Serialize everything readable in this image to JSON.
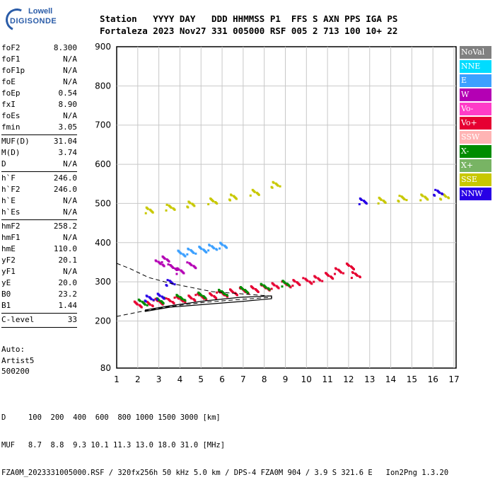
{
  "logo": {
    "line1": "Lowell",
    "line2": "DIGISONDE"
  },
  "header": {
    "line1": "Station   YYYY DAY   DDD HHMMSS P1  FFS S AXN PPS IGA PS",
    "line2": "Fortaleza 2023 Nov27 331 005000 RSF 005 2 713 100 10+ 22"
  },
  "params": [
    {
      "name": "foF2",
      "value": "8.300"
    },
    {
      "name": "foF1",
      "value": "N/A"
    },
    {
      "name": "foF1p",
      "value": "N/A"
    },
    {
      "name": "foE",
      "value": "N/A"
    },
    {
      "name": "foEp",
      "value": "0.54"
    },
    {
      "name": "fxI",
      "value": "8.90"
    },
    {
      "name": "foEs",
      "value": "N/A"
    },
    {
      "name": "fmin",
      "value": "3.05"
    },
    {
      "sep": true
    },
    {
      "name": "MUF(D)",
      "value": "31.04"
    },
    {
      "name": "M(D)",
      "value": "3.74"
    },
    {
      "name": "D",
      "value": "N/A"
    },
    {
      "sep": true
    },
    {
      "name": "h`F",
      "value": "246.0"
    },
    {
      "name": "h`F2",
      "value": "246.0"
    },
    {
      "name": "h`E",
      "value": "N/A"
    },
    {
      "name": "h`Es",
      "value": "N/A"
    },
    {
      "sep": true
    },
    {
      "name": "hmF2",
      "value": "258.2"
    },
    {
      "name": "hmF1",
      "value": "N/A"
    },
    {
      "name": "hmE",
      "value": "110.0"
    },
    {
      "name": "yF2",
      "value": "20.1"
    },
    {
      "name": "yF1",
      "value": "N/A"
    },
    {
      "name": "yE",
      "value": "20.0"
    },
    {
      "name": "B0",
      "value": "23.2"
    },
    {
      "name": "B1",
      "value": "1.44"
    },
    {
      "sep": true
    },
    {
      "name": "C-level",
      "value": "33"
    },
    {
      "sep": true
    }
  ],
  "auto": {
    "line1": "Auto:",
    "line2": "Artist5",
    "line3": "500200"
  },
  "legend": [
    {
      "label": "NoVal",
      "color": "#808080"
    },
    {
      "label": "NNE",
      "color": "#00dcff"
    },
    {
      "label": "E",
      "color": "#3ca0ff"
    },
    {
      "label": "W",
      "color": "#b400b4"
    },
    {
      "label": "Vo-",
      "color": "#ff3cc8"
    },
    {
      "label": "Vo+",
      "color": "#e60032"
    },
    {
      "label": "SSW",
      "color": "#ffb4b4"
    },
    {
      "label": "X-",
      "color": "#008c00"
    },
    {
      "label": "X+",
      "color": "#78b464"
    },
    {
      "label": "SSE",
      "color": "#c8c800"
    },
    {
      "label": "NNW",
      "color": "#2800e6"
    }
  ],
  "footer": {
    "line1": "D     100  200  400  600  800 1000 1500 3000 [km]",
    "line2": "MUF   8.7  8.8  9.3 10.1 11.3 13.0 18.0 31.0 [MHz]",
    "line3": "FZA0M_2023331005000.RSF / 320fx256h 50 kHz 5.0 km / DPS-4 FZA0M 904 / 3.9 S 321.6 E   Ion2Png 1.3.20"
  },
  "chart_data": {
    "type": "scatter",
    "xlabel": "",
    "ylabel": "",
    "x_ticks": [
      1,
      2,
      3,
      4,
      5,
      6,
      7,
      8,
      9,
      10,
      11,
      12,
      13,
      14,
      15,
      16,
      17
    ],
    "y_ticks": [
      80,
      200,
      300,
      400,
      500,
      600,
      700,
      800,
      900
    ],
    "xlim": [
      1,
      17.1
    ],
    "y_scale": "piecewise: 80 at bottom, linear 200-900",
    "grid": true,
    "legend_placement": "right",
    "series": [
      {
        "name": "Vo+",
        "color": "#e60032",
        "x": [
          2.0,
          2.5,
          3.0,
          3.5,
          4.0,
          4.5,
          5.0,
          5.5,
          6.0,
          6.5,
          7.0,
          7.5,
          8.0,
          8.5,
          9.0,
          9.5,
          10.0,
          10.5,
          11.0,
          11.5,
          12.0,
          12.3
        ],
        "y": [
          245,
          248,
          252,
          255,
          258,
          262,
          265,
          268,
          272,
          276,
          280,
          284,
          288,
          292,
          296,
          300,
          305,
          310,
          318,
          330,
          342,
          320
        ]
      },
      {
        "name": "X-",
        "color": "#008c00",
        "x": [
          2.2,
          3.0,
          4.0,
          5.0,
          6.0,
          7.0,
          8.0,
          9.0
        ],
        "y": [
          250,
          255,
          262,
          268,
          275,
          282,
          290,
          298
        ]
      },
      {
        "name": "W",
        "color": "#b400b4",
        "x": [
          3.0,
          3.3,
          3.6,
          4.0,
          4.5
        ],
        "y": [
          350,
          360,
          340,
          330,
          345
        ]
      },
      {
        "name": "E",
        "color": "#3ca0ff",
        "x": [
          4.0,
          4.5,
          5.0,
          5.5,
          6.0
        ],
        "y": [
          375,
          380,
          385,
          390,
          395
        ]
      },
      {
        "name": "SSE",
        "color": "#c8c800",
        "x": [
          2.5,
          3.5,
          4.5,
          5.5,
          6.5,
          7.5,
          8.5,
          13.5,
          14.5,
          15.5,
          16.5
        ],
        "y": [
          485,
          492,
          500,
          508,
          518,
          530,
          550,
          510,
          515,
          518,
          520
        ]
      },
      {
        "name": "NNW",
        "color": "#2800e6",
        "x": [
          2.5,
          3.0,
          3.5,
          12.6,
          16.2
        ],
        "y": [
          260,
          265,
          300,
          508,
          530
        ]
      }
    ]
  }
}
